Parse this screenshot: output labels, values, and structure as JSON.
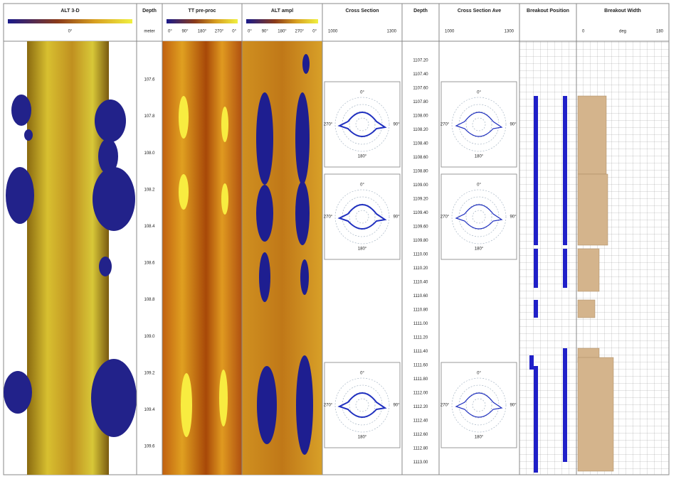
{
  "tracks": [
    {
      "title": "ALT 3-D",
      "scale": [
        "0°"
      ]
    },
    {
      "title": "Depth",
      "scale": [
        "meter"
      ]
    },
    {
      "title": "TT pre-proc",
      "scale": [
        "0°",
        "90°",
        "180°",
        "270°",
        "0°"
      ]
    },
    {
      "title": "ALT ampl",
      "scale": [
        "0°",
        "90°",
        "180°",
        "270°",
        "0°"
      ]
    },
    {
      "title": "Cross Section",
      "scale": [
        "1000",
        "1300"
      ]
    },
    {
      "title": "Depth",
      "scale": []
    },
    {
      "title": "Cross Section Ave",
      "scale": [
        "1000",
        "1300"
      ]
    },
    {
      "title": "Breakout Position",
      "scale": []
    },
    {
      "title": "Breakout Width",
      "scale": [
        "0",
        "deg",
        "180"
      ]
    }
  ],
  "depth_a": [
    "107.6",
    "107.8",
    "108.0",
    "108.2",
    "108.4",
    "108.6",
    "108.8",
    "109.0",
    "109.2",
    "109.4",
    "109.6"
  ],
  "depth_b": [
    "1107.20",
    "1107.40",
    "1107.60",
    "1107.80",
    "1108.00",
    "1108.20",
    "1108.40",
    "1108.60",
    "1108.80",
    "1109.00",
    "1109.20",
    "1109.40",
    "1109.60",
    "1109.80",
    "1110.00",
    "1110.20",
    "1110.40",
    "1110.60",
    "1110.80",
    "1111.00",
    "1111.20",
    "1111.40",
    "1111.60",
    "1111.80",
    "1112.00",
    "1112.20",
    "1112.40",
    "1112.60",
    "1112.80",
    "1113.00"
  ],
  "polar_labels": [
    "0°",
    "90°",
    "180°",
    "270°"
  ]
}
